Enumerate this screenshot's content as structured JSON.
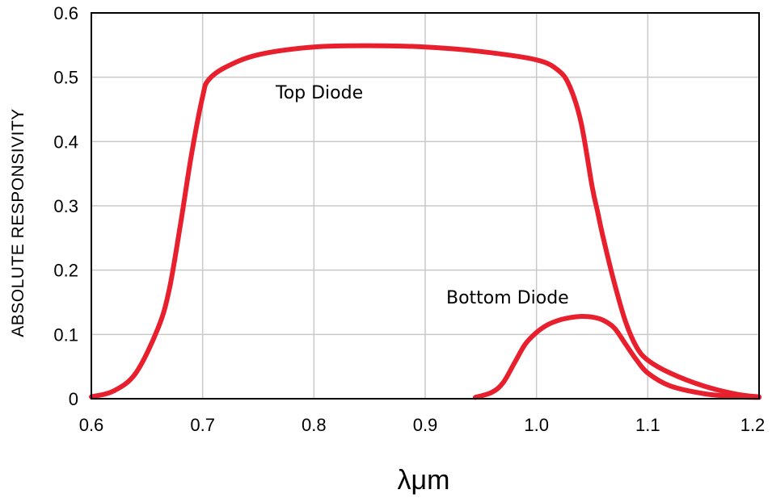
{
  "chart_data": {
    "type": "line",
    "title": "",
    "xlabel": "λμm",
    "ylabel": "ABSOLUTE RESPONSIVITY",
    "xlim": [
      0.6,
      1.2
    ],
    "ylim": [
      0,
      0.6
    ],
    "xticks": [
      "0.6",
      "0.7",
      "0.8",
      "0.9",
      "1.0",
      "1.1",
      "1.2"
    ],
    "yticks": [
      "0",
      "0.1",
      "0.2",
      "0.3",
      "0.4",
      "0.5",
      "0.6"
    ],
    "grid": true,
    "line_color": "#e8202e",
    "annotations": [
      {
        "text": "Top Diode"
      },
      {
        "text": "Bottom Diode"
      }
    ],
    "series": [
      {
        "x": [
          0.6,
          0.62,
          0.64,
          0.66,
          0.67,
          0.68,
          0.69,
          0.7,
          0.705,
          0.72,
          0.75,
          0.8,
          0.85,
          0.9,
          0.95,
          1.0,
          1.02,
          1.03,
          1.04,
          1.05,
          1.055,
          1.06,
          1.07,
          1.08,
          1.09,
          1.1,
          1.12,
          1.15,
          1.18,
          1.2
        ],
        "y": [
          0.003,
          0.012,
          0.04,
          0.11,
          0.17,
          0.27,
          0.38,
          0.47,
          0.495,
          0.515,
          0.535,
          0.547,
          0.549,
          0.547,
          0.54,
          0.527,
          0.51,
          0.485,
          0.43,
          0.33,
          0.29,
          0.25,
          0.18,
          0.12,
          0.08,
          0.06,
          0.04,
          0.02,
          0.007,
          0.003
        ]
      },
      {
        "x": [
          0.945,
          0.96,
          0.97,
          0.98,
          0.99,
          1.0,
          1.01,
          1.02,
          1.03,
          1.04,
          1.05,
          1.06,
          1.07,
          1.08,
          1.09,
          1.1,
          1.12,
          1.15,
          1.18,
          1.2
        ],
        "y": [
          0.002,
          0.01,
          0.025,
          0.055,
          0.085,
          0.103,
          0.115,
          0.122,
          0.126,
          0.128,
          0.127,
          0.122,
          0.11,
          0.085,
          0.06,
          0.04,
          0.02,
          0.008,
          0.003,
          0.002
        ]
      }
    ]
  }
}
